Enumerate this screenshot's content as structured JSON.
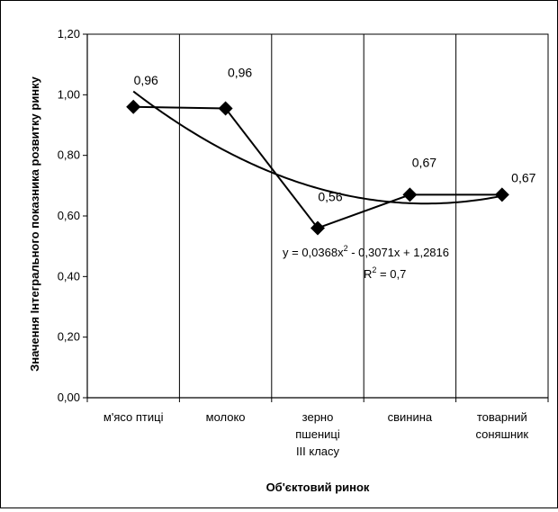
{
  "chart_data": {
    "type": "line",
    "title": "",
    "xlabel": "Об'єктовий ринок",
    "ylabel": "Значення Інтегрального показника розвитку ринку",
    "categories": [
      [
        "м'ясо птиці"
      ],
      [
        "молоко"
      ],
      [
        "зерно",
        "пшениці",
        "ІІІ класу"
      ],
      [
        "свинина"
      ],
      [
        "товарний",
        "соняшник"
      ]
    ],
    "series": [
      {
        "values": [
          0.96,
          0.955,
          0.56,
          0.67,
          0.67
        ],
        "data_labels": [
          "0,96",
          "0,96",
          "0,56",
          "0,67",
          "0,67"
        ],
        "marker": "diamond",
        "color": "#000000"
      }
    ],
    "trendline": {
      "type": "polynomial",
      "order": 2,
      "coefficients": {
        "a": 0.0368,
        "b": -0.3071,
        "c": 1.2816
      },
      "equation_prefix": "y = 0,0368x",
      "equation_exp": "2",
      "equation_suffix": " - 0,3071x + 1,2816",
      "r2_prefix": "R",
      "r2_exp": "2",
      "r2_suffix": " = 0,7"
    },
    "ylim": [
      0,
      1.2
    ],
    "yticks": [
      0,
      0.2,
      0.4,
      0.6,
      0.8,
      1.0,
      1.2
    ],
    "ytick_labels": [
      "0,00",
      "0,20",
      "0,40",
      "0,60",
      "0,80",
      "1,00",
      "1,20"
    ],
    "grid": "vertical"
  }
}
